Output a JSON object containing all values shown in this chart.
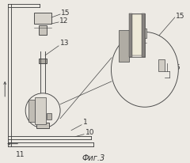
{
  "title": "Фиг.3",
  "bg_color": "#edeae4",
  "line_color": "#444444",
  "label_color": "#333333",
  "fig_width": 2.4,
  "fig_height": 2.06,
  "dpi": 100
}
